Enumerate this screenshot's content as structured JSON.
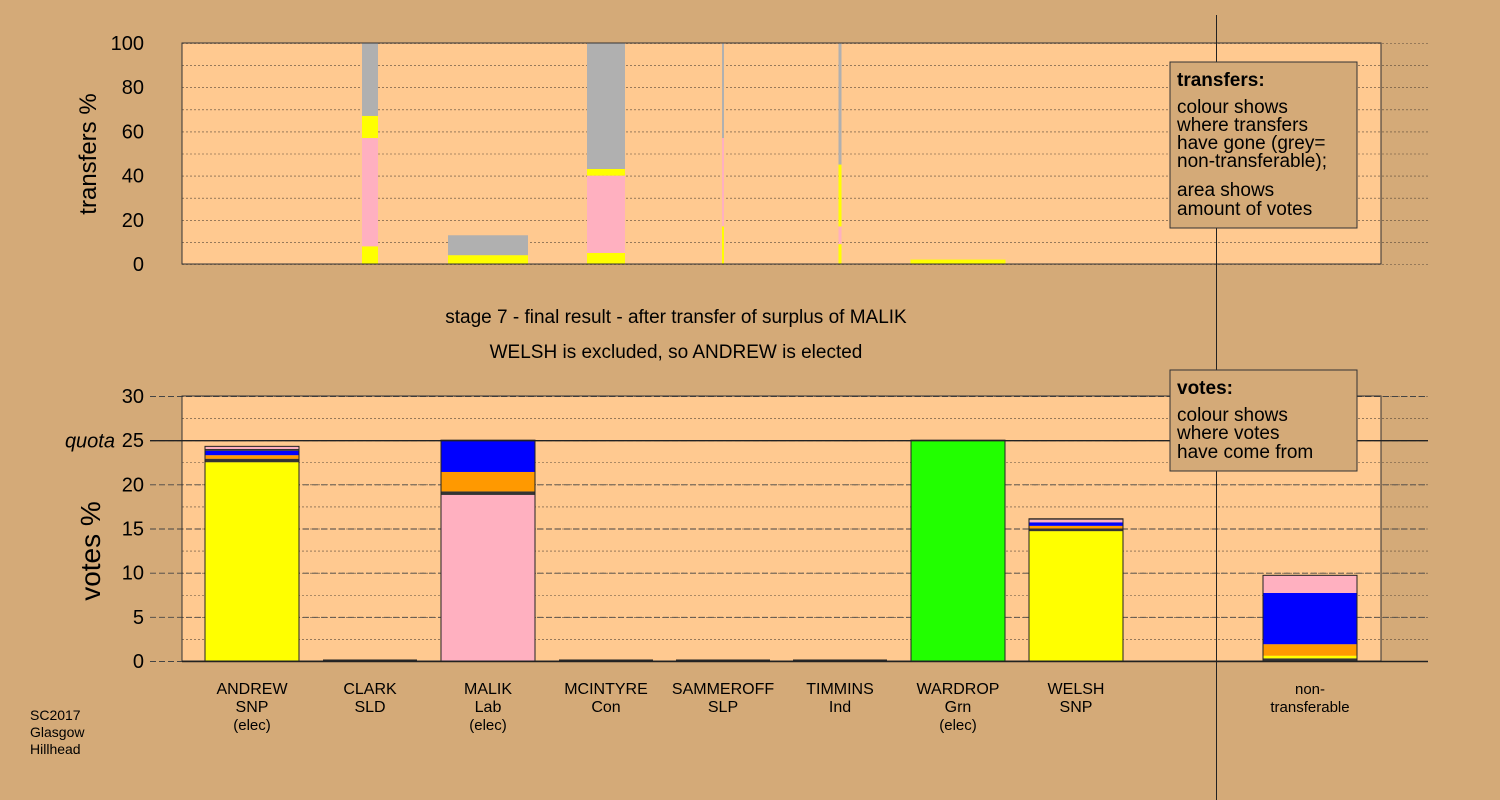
{
  "footer": {
    "lines": [
      "SC2017",
      "Glasgow",
      "Hillhead"
    ]
  },
  "stage": {
    "title": "stage 7 - final result - after transfer of surplus of MALIK",
    "subtitle": "WELSH is excluded, so ANDREW is elected"
  },
  "legend_transfers": {
    "heading": "transfers:",
    "lines_a": [
      "colour shows",
      "where transfers",
      "have gone (grey=",
      "non-transferable);"
    ],
    "lines_b": [
      "area shows",
      "amount of votes"
    ]
  },
  "legend_votes": {
    "heading": "votes:",
    "lines": [
      "colour shows",
      "where votes",
      "have come from"
    ]
  },
  "colors": {
    "background": "#d4aa78",
    "plot": "#ffc990",
    "SNP": "#ffff00",
    "Lab": "#ffb0c0",
    "Grn": "#22ff00",
    "Con": "#0000ff",
    "SLD": "#ff9900",
    "other": "#333333",
    "nontransferable": "#b0b0b0"
  },
  "chart_data": [
    {
      "type": "bar",
      "stacked": true,
      "ylabel": "transfers %",
      "ylim": [
        0,
        100
      ],
      "yticks": [
        0,
        20,
        40,
        60,
        80,
        100
      ],
      "grid": true,
      "columns": [
        {
          "key": "ANDREW",
          "segments": []
        },
        {
          "key": "CLARK",
          "segments": [
            {
              "color": "SNP",
              "value": 8
            },
            {
              "color": "Lab",
              "value": 49
            },
            {
              "color": "SNP",
              "value": 10
            },
            {
              "color": "nontransferable",
              "value": 33
            }
          ]
        },
        {
          "key": "MALIK",
          "segments": [
            {
              "color": "SNP",
              "value": 4
            },
            {
              "color": "nontransferable",
              "value": 9
            }
          ]
        },
        {
          "key": "MCINTYRE",
          "segments": [
            {
              "color": "SNP",
              "value": 5
            },
            {
              "color": "Lab",
              "value": 35
            },
            {
              "color": "SNP",
              "value": 3
            },
            {
              "color": "nontransferable",
              "value": 57
            }
          ]
        },
        {
          "key": "SAMMEROFF",
          "thin": true,
          "segments": [
            {
              "color": "SNP",
              "value": 17
            },
            {
              "color": "Lab",
              "value": 40
            },
            {
              "color": "nontransferable",
              "value": 43
            }
          ]
        },
        {
          "key": "TIMMINS",
          "thin": true,
          "segments": [
            {
              "color": "SNP",
              "value": 9
            },
            {
              "color": "Lab",
              "value": 8
            },
            {
              "color": "SNP",
              "value": 28
            },
            {
              "color": "nontransferable",
              "value": 55
            }
          ]
        },
        {
          "key": "WARDROP",
          "segments": [
            {
              "color": "SNP",
              "value": 2
            }
          ]
        },
        {
          "key": "WELSH",
          "segments": []
        }
      ]
    },
    {
      "type": "bar",
      "stacked": true,
      "ylabel": "votes %",
      "ylim": [
        0,
        30
      ],
      "yticks": [
        0,
        5,
        10,
        15,
        20,
        25,
        30
      ],
      "quota": 25,
      "quota_label": "quota",
      "grid": true,
      "columns": [
        {
          "key": "ANDREW",
          "label": [
            "ANDREW",
            "SNP",
            "(elec)"
          ],
          "segments": [
            {
              "color": "SNP",
              "value": 22.5
            },
            {
              "color": "other",
              "value": 0.4
            },
            {
              "color": "SLD",
              "value": 0.4
            },
            {
              "color": "Con",
              "value": 0.5
            },
            {
              "color": "other",
              "value": 0.2
            },
            {
              "color": "Lab",
              "value": 0.3
            }
          ]
        },
        {
          "key": "CLARK",
          "label": [
            "CLARK",
            "SLD"
          ],
          "segments": []
        },
        {
          "key": "MALIK",
          "label": [
            "MALIK",
            "Lab",
            "(elec)"
          ],
          "segments": [
            {
              "color": "Lab",
              "value": 18.8
            },
            {
              "color": "other",
              "value": 0.4
            },
            {
              "color": "SLD",
              "value": 2.2
            },
            {
              "color": "Con",
              "value": 3.6
            }
          ]
        },
        {
          "key": "MCINTYRE",
          "label": [
            "MCINTYRE",
            "Con"
          ],
          "segments": []
        },
        {
          "key": "SAMMEROFF",
          "label": [
            "SAMMEROFF",
            "SLP"
          ],
          "segments": []
        },
        {
          "key": "TIMMINS",
          "label": [
            "TIMMINS",
            "Ind"
          ],
          "segments": []
        },
        {
          "key": "WARDROP",
          "label": [
            "WARDROP",
            "Grn",
            "(elec)"
          ],
          "segments": [
            {
              "color": "Grn",
              "value": 25
            }
          ]
        },
        {
          "key": "WELSH",
          "label": [
            "WELSH",
            "SNP"
          ],
          "segments": [
            {
              "color": "SNP",
              "value": 14.7
            },
            {
              "color": "other",
              "value": 0.3
            },
            {
              "color": "SLD",
              "value": 0.3
            },
            {
              "color": "Con",
              "value": 0.4
            },
            {
              "color": "Lab",
              "value": 0.3
            },
            {
              "color": "other",
              "value": 0.1
            }
          ]
        },
        {
          "key": "NONTRANS",
          "label": [
            "non-",
            "transferable"
          ],
          "segments": [
            {
              "color": "other",
              "value": 0.3
            },
            {
              "color": "SNP",
              "value": 0.3
            },
            {
              "color": "SLD",
              "value": 1.3
            },
            {
              "color": "Con",
              "value": 5.8
            },
            {
              "color": "Lab",
              "value": 2
            }
          ]
        }
      ]
    }
  ]
}
